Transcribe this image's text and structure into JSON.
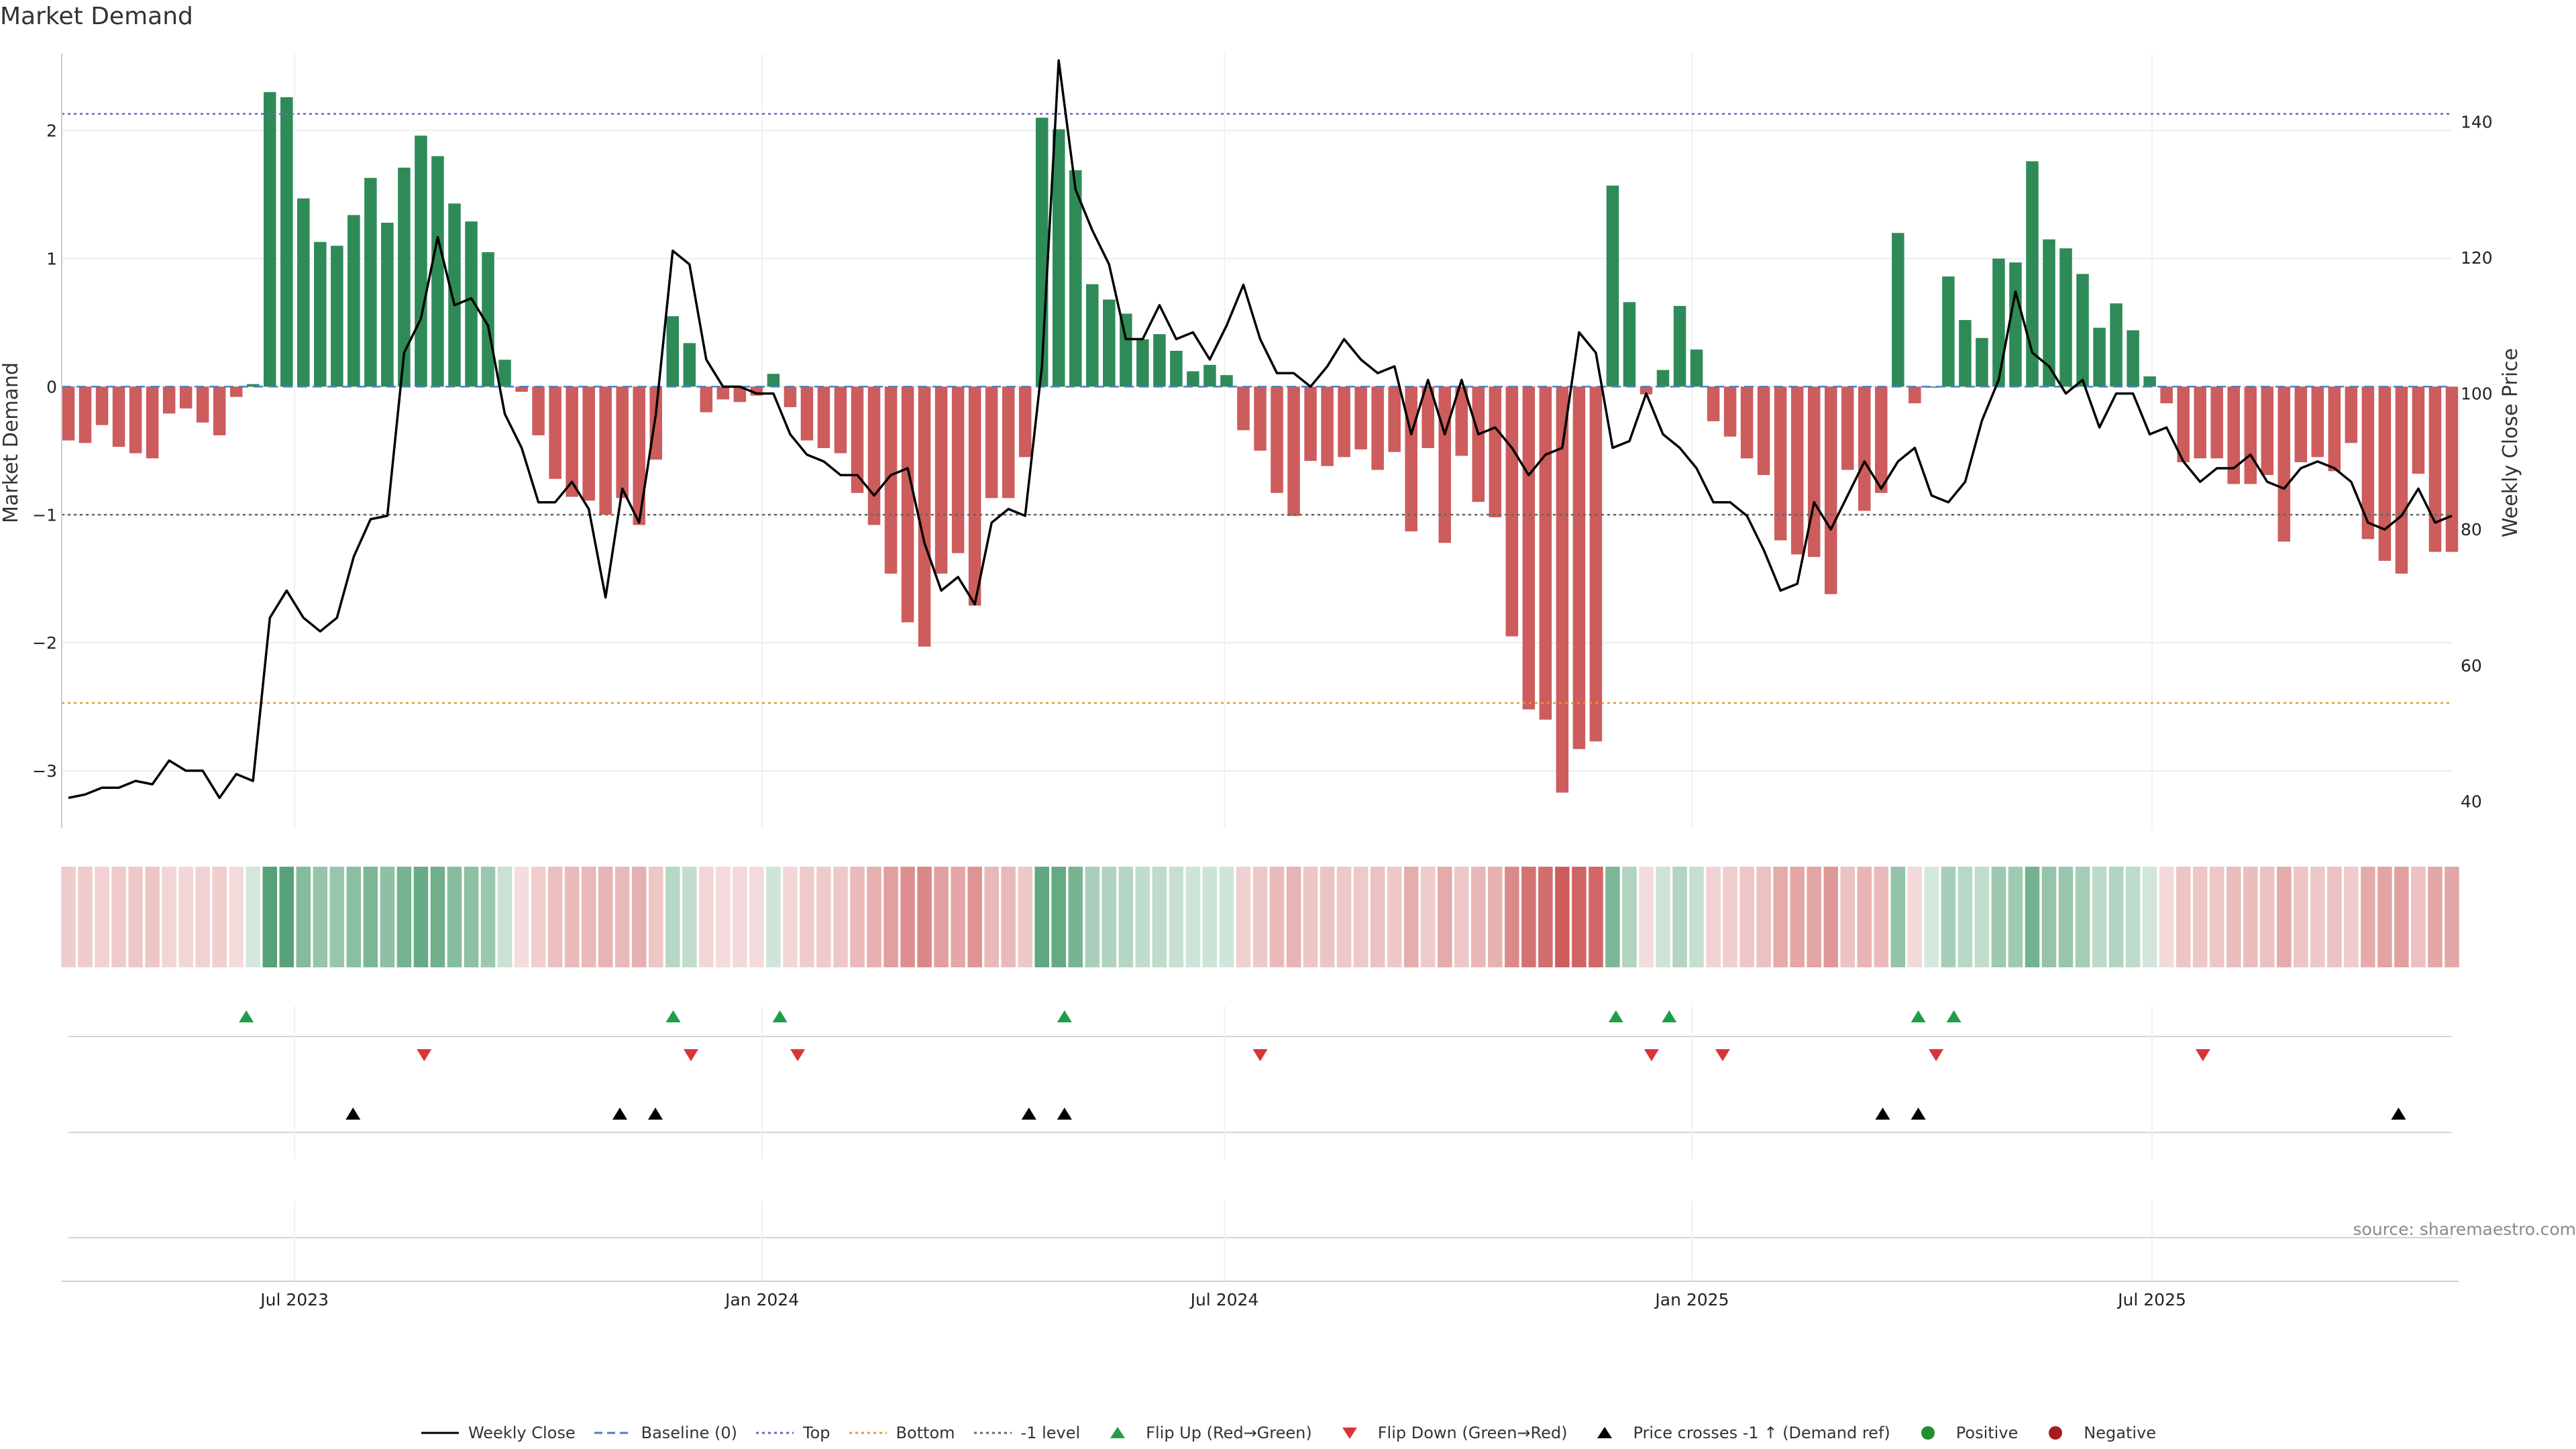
{
  "title": "Market Demand",
  "source": "source: sharemaestro.com",
  "colors": {
    "positive": "#2e8b57",
    "negative": "#cd5c5c",
    "price": "#000000",
    "top": "#6b63c6",
    "bottom": "#d9a02b",
    "minus_one": "#666666",
    "flip_up": "#1f9e4a",
    "flip_down": "#d9343a",
    "cross": "#000000",
    "pos_dot": "#1f8f2f",
    "neg_dot": "#a51e1e"
  },
  "chart_data": {
    "type": "bar+line",
    "title": "Market Demand",
    "ylabel": "Market Demand",
    "y2label": "Weekly Close Price",
    "ylim": [
      -3.45,
      2.6
    ],
    "y2lim": [
      36,
      150
    ],
    "yticks": [
      "2",
      "1",
      "0",
      "−1",
      "−2",
      "−3"
    ],
    "yticks_values": [
      2,
      1,
      0,
      -1,
      -2,
      -3
    ],
    "y2ticks": [
      "140",
      "120",
      "100",
      "80",
      "60",
      "40"
    ],
    "y2ticks_values": [
      140,
      120,
      100,
      80,
      60,
      40
    ],
    "x_range": [
      "2023-04-03",
      "2025-10-27"
    ],
    "x_ticks": [
      {
        "label": "Jul 2023",
        "date": "2023-07-01"
      },
      {
        "label": "Jan 2024",
        "date": "2024-01-01"
      },
      {
        "label": "Jul 2024",
        "date": "2024-07-01"
      },
      {
        "label": "Jan 2025",
        "date": "2025-01-01"
      },
      {
        "label": "Jul 2025",
        "date": "2025-07-01"
      }
    ],
    "reference_lines": {
      "top": 2.13,
      "bottom": -2.47,
      "minus_one": -1.0,
      "baseline": 0
    },
    "demand": [
      -0.42,
      -0.44,
      -0.3,
      -0.47,
      -0.52,
      -0.56,
      -0.21,
      -0.17,
      -0.28,
      -0.38,
      -0.08,
      0.02,
      2.3,
      2.26,
      1.47,
      1.13,
      1.1,
      1.34,
      1.63,
      1.28,
      1.71,
      1.96,
      1.8,
      1.43,
      1.29,
      1.05,
      0.21,
      -0.04,
      -0.38,
      -0.72,
      -0.86,
      -0.89,
      -1.0,
      -0.87,
      -1.08,
      -0.57,
      0.55,
      0.34,
      -0.2,
      -0.1,
      -0.12,
      -0.07,
      0.1,
      -0.16,
      -0.42,
      -0.48,
      -0.52,
      -0.83,
      -1.08,
      -1.46,
      -1.84,
      -2.03,
      -1.46,
      -1.3,
      -1.71,
      -0.87,
      -0.87,
      -0.55,
      2.1,
      2.01,
      1.69,
      0.8,
      0.68,
      0.57,
      0.37,
      0.41,
      0.28,
      0.12,
      0.17,
      0.09,
      -0.34,
      -0.5,
      -0.83,
      -1.01,
      -0.58,
      -0.62,
      -0.55,
      -0.49,
      -0.65,
      -0.51,
      -1.13,
      -0.48,
      -1.22,
      -0.54,
      -0.9,
      -1.02,
      -1.95,
      -2.52,
      -2.6,
      -3.17,
      -2.83,
      -2.77,
      1.57,
      0.66,
      -0.06,
      0.13,
      0.63,
      0.29,
      -0.27,
      -0.39,
      -0.56,
      -0.69,
      -1.2,
      -1.31,
      -1.33,
      -1.62,
      -0.65,
      -0.97,
      -0.83,
      1.2,
      -0.13,
      0.0,
      0.86,
      0.52,
      0.38,
      1.0,
      0.97,
      1.76,
      1.15,
      1.08,
      0.88,
      0.46,
      0.65,
      0.44,
      0.08,
      -0.13,
      -0.59,
      -0.56,
      -0.56,
      -0.76,
      -0.76,
      -0.69,
      -1.21,
      -0.59,
      -0.55,
      -0.66,
      -0.44,
      -1.19,
      -1.36,
      -1.46,
      -0.68,
      -1.29,
      -1.29
    ],
    "weekly_close": [
      40.5,
      41,
      42,
      42,
      43,
      42.5,
      46,
      44.5,
      44.5,
      40.5,
      44,
      43,
      67,
      71,
      67,
      65,
      67,
      76,
      81.5,
      82,
      106,
      111,
      123,
      113,
      114,
      110,
      97,
      92,
      84,
      84,
      87,
      83,
      70,
      86,
      81,
      97,
      121,
      119,
      105,
      101,
      101,
      100,
      100,
      94,
      91,
      90,
      88,
      88,
      85,
      88,
      89,
      78,
      71,
      73,
      69,
      81,
      83,
      82,
      104,
      149,
      130,
      124,
      119,
      108,
      108,
      113,
      108,
      109,
      105,
      110,
      116,
      108,
      103,
      103,
      101,
      104,
      108,
      105,
      103,
      104,
      94,
      102,
      94,
      102,
      94,
      95,
      92,
      88,
      91,
      92,
      109,
      106,
      92,
      93,
      100,
      94,
      92,
      89,
      84,
      84,
      82,
      77,
      71,
      72,
      84,
      80,
      85,
      90,
      86,
      90,
      92,
      85,
      84,
      87,
      96,
      102,
      115,
      106,
      104,
      100,
      102,
      95,
      100,
      100,
      94,
      95,
      90,
      87,
      89,
      89,
      91,
      87,
      86,
      89,
      90,
      89,
      87,
      81,
      80,
      82,
      86,
      81,
      82
    ]
  },
  "heat_strip": {
    "label": "demand heat strip"
  },
  "events": {
    "flip_up_dates": [
      "2023-06-12",
      "2023-11-27",
      "2024-01-08",
      "2024-04-29",
      "2024-12-02",
      "2024-12-23",
      "2025-03-31",
      "2025-04-14"
    ],
    "flip_down_dates": [
      "2023-08-21",
      "2023-12-04",
      "2024-01-15",
      "2024-07-15",
      "2024-12-16",
      "2025-01-13",
      "2025-04-07",
      "2025-07-21"
    ],
    "cross_up_dates": [
      "2023-07-24",
      "2023-11-06",
      "2023-11-20",
      "2024-04-15",
      "2024-04-29",
      "2025-03-17",
      "2025-03-31",
      "2025-10-06"
    ]
  },
  "legend": [
    {
      "id": "weekly_close",
      "label": "Weekly Close",
      "symbol": "line-solid",
      "color": "#000000"
    },
    {
      "id": "baseline",
      "label": "Baseline (0)",
      "symbol": "line-dashed",
      "color": "#4a7fc1"
    },
    {
      "id": "top",
      "label": "Top",
      "symbol": "line-dotted",
      "color": "#6b63c6"
    },
    {
      "id": "bottom",
      "label": "Bottom",
      "symbol": "line-dotted",
      "color": "#d9a02b"
    },
    {
      "id": "minus_one",
      "label": "-1 level",
      "symbol": "line-dotted",
      "color": "#666666"
    },
    {
      "id": "flip_up",
      "label": "Flip Up (Red→Green)",
      "symbol": "triangle-up",
      "color": "#1f9e4a"
    },
    {
      "id": "flip_down",
      "label": "Flip Down (Green→Red)",
      "symbol": "triangle-down",
      "color": "#d9343a"
    },
    {
      "id": "cross",
      "label": "Price crosses -1 ↑ (Demand ref)",
      "symbol": "triangle-up",
      "color": "#000000"
    },
    {
      "id": "positive",
      "label": "Positive",
      "symbol": "dot",
      "color": "#1f8f2f"
    },
    {
      "id": "negative",
      "label": "Negative",
      "symbol": "dot",
      "color": "#a51e1e"
    }
  ]
}
